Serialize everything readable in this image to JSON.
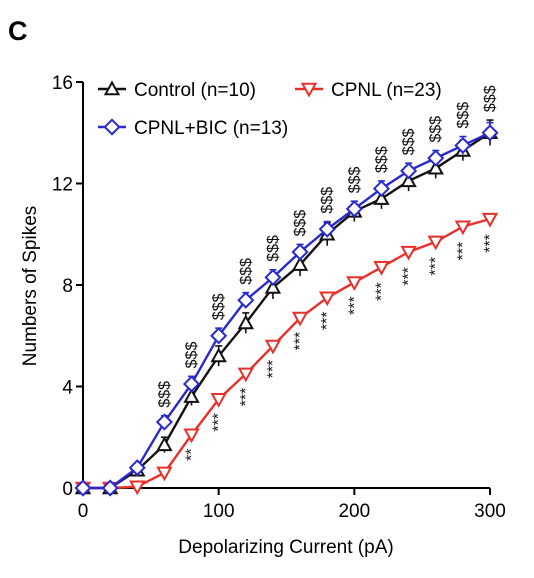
{
  "panel_label": "C",
  "chart_data": {
    "type": "line",
    "title": "",
    "xlabel": "Depolarizing Current (pA)",
    "ylabel": "Numbers of Spikes",
    "xlim": [
      0,
      300
    ],
    "ylim": [
      0,
      16
    ],
    "xticks": [
      0,
      100,
      200,
      300
    ],
    "yticks": [
      0,
      4,
      8,
      12,
      16
    ],
    "grid": false,
    "legend_position": "top-left",
    "x": [
      0,
      20,
      40,
      60,
      80,
      100,
      120,
      140,
      160,
      180,
      200,
      220,
      240,
      260,
      280,
      300
    ],
    "series": [
      {
        "name": "Control (n=10)",
        "color": "#111111",
        "marker": "triangle-up",
        "values": [
          0,
          0,
          0.7,
          1.7,
          3.6,
          5.2,
          6.5,
          7.9,
          8.8,
          10.0,
          10.9,
          11.4,
          12.1,
          12.6,
          13.3,
          14.0
        ],
        "errors": [
          0,
          0,
          0.15,
          0.3,
          0.35,
          0.4,
          0.4,
          0.45,
          0.45,
          0.45,
          0.4,
          0.4,
          0.4,
          0.4,
          0.4,
          0.5
        ]
      },
      {
        "name": "CPNL (n=23)",
        "color": "#e8302a",
        "marker": "triangle-down",
        "values": [
          0,
          0,
          0.05,
          0.6,
          2.1,
          3.5,
          4.5,
          5.6,
          6.7,
          7.5,
          8.1,
          8.7,
          9.3,
          9.7,
          10.3,
          10.6
        ],
        "errors": [
          0,
          0,
          0.05,
          0.1,
          0.15,
          0.15,
          0.15,
          0.15,
          0.15,
          0.15,
          0.15,
          0.2,
          0.2,
          0.2,
          0.2,
          0.2
        ]
      },
      {
        "name": "CPNL+BIC (n=13)",
        "color": "#2a2acc",
        "marker": "diamond",
        "values": [
          0,
          0,
          0.8,
          2.6,
          4.1,
          6.0,
          7.4,
          8.3,
          9.3,
          10.2,
          11.0,
          11.8,
          12.5,
          13.0,
          13.5,
          14.0
        ],
        "errors": [
          0,
          0,
          0.1,
          0.25,
          0.3,
          0.3,
          0.3,
          0.3,
          0.3,
          0.3,
          0.3,
          0.3,
          0.3,
          0.3,
          0.35,
          0.4
        ]
      }
    ],
    "annotations": {
      "dollar": {
        "text": "$$$",
        "x": [
          60,
          80,
          100,
          120,
          140,
          160,
          180,
          200,
          220,
          240,
          260,
          280,
          300
        ]
      },
      "stars": {
        "x": [
          80,
          100,
          120,
          140,
          160,
          180,
          200,
          220,
          240,
          260,
          280,
          300
        ],
        "text": [
          "**",
          "***",
          "***",
          "***",
          "***",
          "***",
          "***",
          "***",
          "***",
          "***",
          "***",
          "***"
        ]
      }
    }
  }
}
